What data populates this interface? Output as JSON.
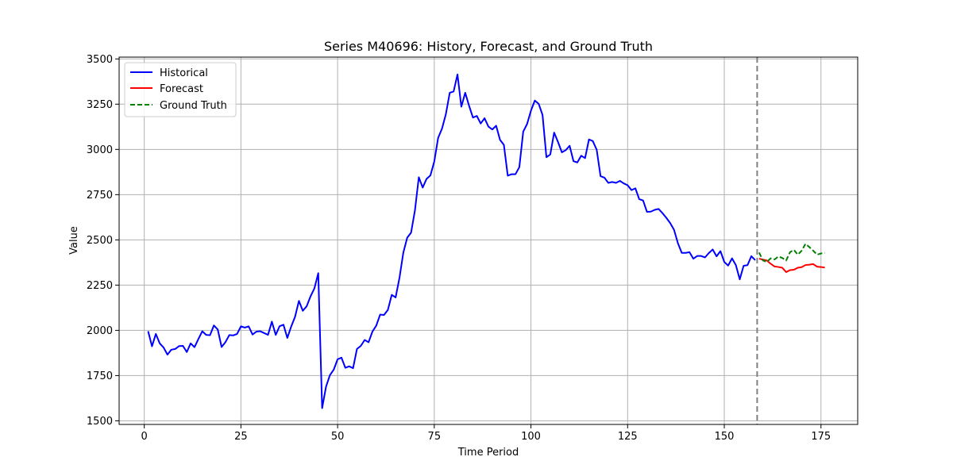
{
  "chart_data": {
    "type": "line",
    "title": "Series M40696: History, Forecast, and Ground Truth",
    "xlabel": "Time Period",
    "ylabel": "Value",
    "xlim": [
      -6.5,
      184.5
    ],
    "ylim": [
      1480,
      3510
    ],
    "xticks": [
      0,
      25,
      50,
      75,
      100,
      125,
      150,
      175
    ],
    "yticks": [
      1500,
      1750,
      2000,
      2250,
      2500,
      2750,
      3000,
      3250,
      3500
    ],
    "grid": true,
    "legend_position": "top-left",
    "forecast_start_marker": 158.5,
    "series": [
      {
        "name": "Historical",
        "color": "#0000ff",
        "style": "solid",
        "x": [
          1,
          2,
          3,
          4,
          5,
          6,
          7,
          8,
          9,
          10,
          11,
          12,
          13,
          14,
          15,
          16,
          17,
          18,
          19,
          20,
          21,
          22,
          23,
          24,
          25,
          26,
          27,
          28,
          29,
          30,
          31,
          32,
          33,
          34,
          35,
          36,
          37,
          38,
          39,
          40,
          41,
          42,
          43,
          44,
          45,
          46,
          47,
          48,
          49,
          50,
          51,
          52,
          53,
          54,
          55,
          56,
          57,
          58,
          59,
          60,
          61,
          62,
          63,
          64,
          65,
          66,
          67,
          68,
          69,
          70,
          71,
          72,
          73,
          74,
          75,
          76,
          77,
          78,
          79,
          80,
          81,
          82,
          83,
          84,
          85,
          86,
          87,
          88,
          89,
          90,
          91,
          92,
          93,
          94,
          95,
          96,
          97,
          98,
          99,
          100,
          101,
          102,
          103,
          104,
          105,
          106,
          107,
          108,
          109,
          110,
          111,
          112,
          113,
          114,
          115,
          116,
          117,
          118,
          119,
          120,
          121,
          122,
          123,
          124,
          125,
          126,
          127,
          128,
          129,
          130,
          131,
          132,
          133,
          134,
          135,
          136,
          137,
          138,
          139,
          140,
          141,
          142,
          143,
          144,
          145,
          146,
          147,
          148,
          149,
          150,
          151,
          152,
          153,
          154,
          155,
          156,
          157,
          158
        ],
        "values": [
          1995,
          1912,
          1980,
          1928,
          1905,
          1866,
          1893,
          1897,
          1913,
          1914,
          1880,
          1928,
          1907,
          1952,
          1995,
          1975,
          1973,
          2027,
          2005,
          1908,
          1935,
          1974,
          1972,
          1980,
          2022,
          2015,
          2022,
          1977,
          1993,
          1995,
          1985,
          1975,
          2048,
          1975,
          2023,
          2031,
          1958,
          2021,
          2075,
          2163,
          2108,
          2133,
          2188,
          2232,
          2316,
          1570,
          1688,
          1752,
          1783,
          1840,
          1849,
          1793,
          1801,
          1791,
          1897,
          1914,
          1947,
          1934,
          1993,
          2026,
          2087,
          2085,
          2113,
          2196,
          2182,
          2290,
          2430,
          2512,
          2540,
          2663,
          2846,
          2789,
          2837,
          2856,
          2933,
          3064,
          3115,
          3195,
          3313,
          3320,
          3414,
          3236,
          3313,
          3241,
          3176,
          3185,
          3143,
          3172,
          3126,
          3110,
          3131,
          3053,
          3025,
          2855,
          2863,
          2863,
          2902,
          3098,
          3140,
          3214,
          3270,
          3252,
          3190,
          2957,
          2972,
          3093,
          3041,
          2984,
          2996,
          3020,
          2935,
          2928,
          2965,
          2952,
          3055,
          3046,
          2998,
          2852,
          2844,
          2815,
          2820,
          2815,
          2826,
          2812,
          2802,
          2775,
          2785,
          2725,
          2718,
          2655,
          2656,
          2666,
          2671,
          2648,
          2622,
          2593,
          2556,
          2482,
          2428,
          2428,
          2432,
          2396,
          2411,
          2411,
          2403,
          2427,
          2447,
          2409,
          2438,
          2378,
          2358,
          2398,
          2360,
          2282,
          2357,
          2360,
          2410,
          2388
        ]
      },
      {
        "name": "Forecast",
        "color": "#ff0000",
        "style": "solid",
        "x": [
          159,
          160,
          161,
          162,
          163,
          164,
          165,
          166,
          167,
          168,
          169,
          170,
          171,
          172,
          173,
          174,
          175,
          176
        ],
        "values": [
          2396,
          2391,
          2386,
          2368,
          2353,
          2350,
          2346,
          2322,
          2333,
          2335,
          2346,
          2349,
          2361,
          2363,
          2366,
          2352,
          2350,
          2347
        ]
      },
      {
        "name": "Ground Truth",
        "color": "#008000",
        "style": "dashed",
        "x": [
          159,
          160,
          161,
          162,
          163,
          164,
          165,
          166,
          167,
          168,
          169,
          170,
          171,
          172,
          173,
          174,
          175,
          176
        ],
        "values": [
          2430,
          2386,
          2378,
          2398,
          2392,
          2408,
          2400,
          2386,
          2432,
          2445,
          2418,
          2440,
          2478,
          2460,
          2440,
          2418,
          2425,
          2428
        ]
      }
    ]
  }
}
